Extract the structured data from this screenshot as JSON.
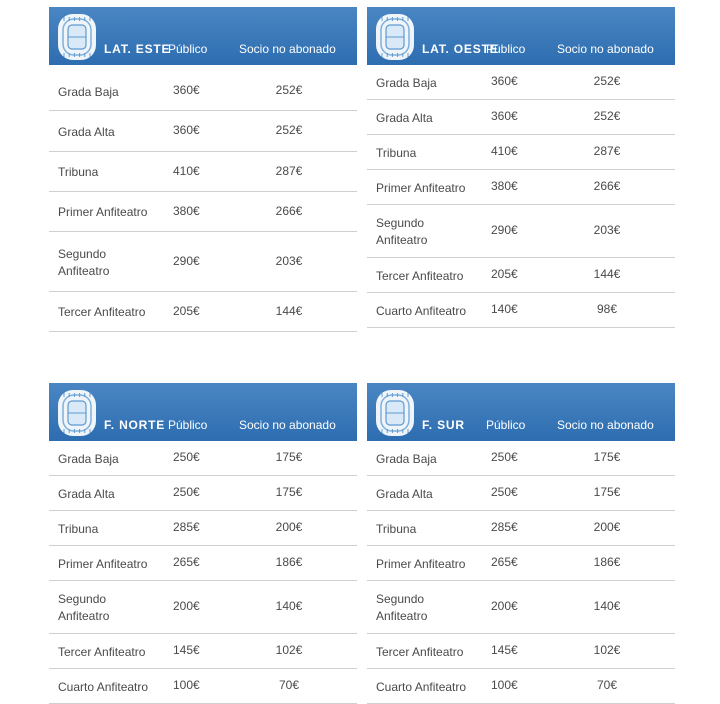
{
  "columns": {
    "publico": "Público",
    "socio": "Socio no abonado"
  },
  "panels": [
    {
      "name": "LAT. ESTE",
      "rows": [
        {
          "label": "Grada Baja",
          "publico": "360€",
          "socio": "252€"
        },
        {
          "label": "Grada Alta",
          "publico": "360€",
          "socio": "252€"
        },
        {
          "label": "Tribuna",
          "publico": "410€",
          "socio": "287€"
        },
        {
          "label": "Primer Anfiteatro",
          "publico": "380€",
          "socio": "266€"
        },
        {
          "label": "Segundo Anfiteatro",
          "publico": "290€",
          "socio": "203€"
        },
        {
          "label": "Tercer Anfiteatro",
          "publico": "205€",
          "socio": "144€"
        }
      ]
    },
    {
      "name": "LAT. OESTE",
      "rows": [
        {
          "label": "Grada Baja",
          "publico": "360€",
          "socio": "252€"
        },
        {
          "label": "Grada Alta",
          "publico": "360€",
          "socio": "252€"
        },
        {
          "label": "Tribuna",
          "publico": "410€",
          "socio": "287€"
        },
        {
          "label": "Primer Anfiteatro",
          "publico": "380€",
          "socio": "266€"
        },
        {
          "label": "Segundo Anfiteatro",
          "publico": "290€",
          "socio": "203€"
        },
        {
          "label": "Tercer Anfiteatro",
          "publico": "205€",
          "socio": "144€"
        },
        {
          "label": "Cuarto Anfiteatro",
          "publico": "140€",
          "socio": "98€"
        }
      ]
    },
    {
      "name": "F. NORTE",
      "rows": [
        {
          "label": "Grada Baja",
          "publico": "250€",
          "socio": "175€"
        },
        {
          "label": "Grada Alta",
          "publico": "250€",
          "socio": "175€"
        },
        {
          "label": "Tribuna",
          "publico": "285€",
          "socio": "200€"
        },
        {
          "label": "Primer Anfiteatro",
          "publico": "265€",
          "socio": "186€"
        },
        {
          "label": "Segundo Anfiteatro",
          "publico": "200€",
          "socio": "140€"
        },
        {
          "label": "Tercer Anfiteatro",
          "publico": "145€",
          "socio": "102€"
        },
        {
          "label": "Cuarto Anfiteatro",
          "publico": "100€",
          "socio": "70€"
        }
      ]
    },
    {
      "name": "F. SUR",
      "rows": [
        {
          "label": "Grada Baja",
          "publico": "250€",
          "socio": "175€"
        },
        {
          "label": "Grada Alta",
          "publico": "250€",
          "socio": "175€"
        },
        {
          "label": "Tribuna",
          "publico": "285€",
          "socio": "200€"
        },
        {
          "label": "Primer Anfiteatro",
          "publico": "265€",
          "socio": "186€"
        },
        {
          "label": "Segundo Anfiteatro",
          "publico": "200€",
          "socio": "140€"
        },
        {
          "label": "Tercer Anfiteatro",
          "publico": "145€",
          "socio": "102€"
        },
        {
          "label": "Cuarto Anfiteatro",
          "publico": "100€",
          "socio": "70€"
        }
      ]
    }
  ]
}
